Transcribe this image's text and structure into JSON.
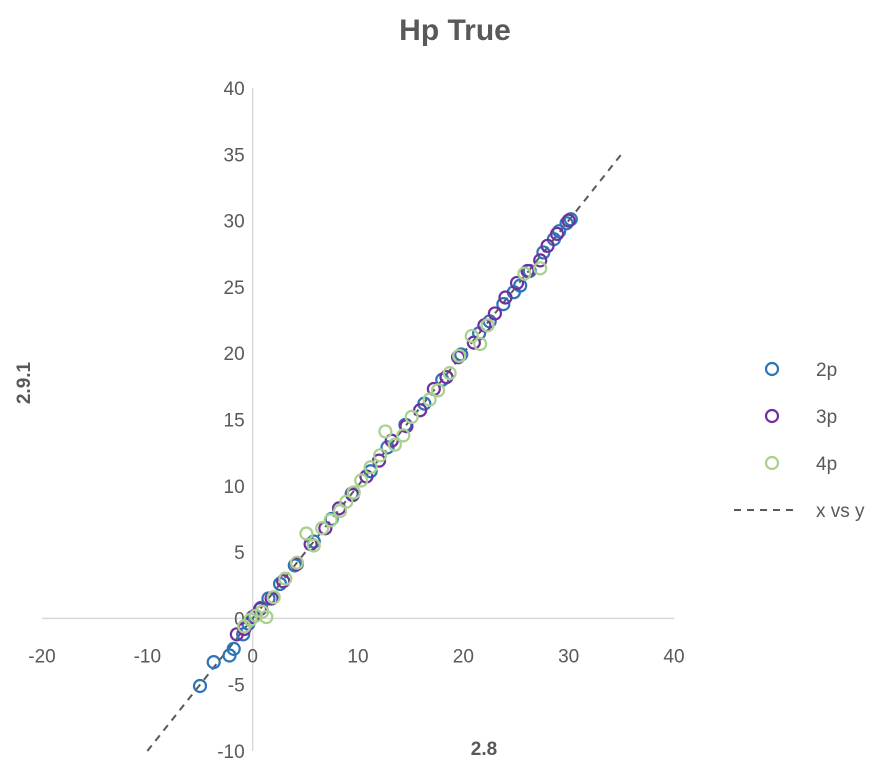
{
  "chart_data": {
    "type": "scatter",
    "title": "Hp True",
    "xlabel": "2.8",
    "ylabel": "2.9.1",
    "xlim": [
      -20,
      40
    ],
    "ylim": [
      -10,
      40
    ],
    "xticks": [
      -20,
      -10,
      0,
      10,
      20,
      30,
      40
    ],
    "yticks": [
      -10,
      -5,
      0,
      5,
      10,
      15,
      20,
      25,
      30,
      35,
      40
    ],
    "grid": false,
    "legend_position": "right",
    "series": [
      {
        "name": "2p",
        "color": "#2e75b6",
        "marker": "open-circle",
        "x": [
          -5,
          -3.7,
          -2.2,
          -1.8,
          -0.9,
          -0.4,
          0.2,
          0.8,
          1.5,
          2.6,
          4,
          5.8,
          7.5,
          9.4,
          11.2,
          12.8,
          14.5,
          16.3,
          18,
          19.8,
          21.5,
          22.5,
          23.8,
          24.8,
          25.4,
          26.3,
          27.6,
          28.6,
          29.1,
          29.8,
          30.2
        ],
        "y": [
          -5.1,
          -3.3,
          -2.8,
          -2.3,
          -1.2,
          -0.4,
          0.2,
          0.8,
          1.5,
          2.6,
          4,
          5.8,
          7.5,
          9.4,
          11.1,
          12.9,
          14.6,
          16.2,
          18,
          19.9,
          21.5,
          22.4,
          23.7,
          24.6,
          25.1,
          26.2,
          27.6,
          28.6,
          29.2,
          29.8,
          30.1
        ]
      },
      {
        "name": "3p",
        "color": "#7030a0",
        "marker": "open-circle",
        "x": [
          -1.5,
          -0.8,
          0,
          0.7,
          1.8,
          2.9,
          4.2,
          5.5,
          6.9,
          8.2,
          9.5,
          10.8,
          12,
          13.2,
          14.6,
          15.9,
          17.2,
          18.4,
          19.5,
          21,
          22,
          23,
          24,
          25.1,
          26.1,
          27.3,
          28,
          28.9,
          30
        ],
        "y": [
          -1.2,
          -0.8,
          0.1,
          0.7,
          1.5,
          2.8,
          4.1,
          5.6,
          6.8,
          8.3,
          9.3,
          10.7,
          11.9,
          13.4,
          14.5,
          15.7,
          17.3,
          18.2,
          19.7,
          20.8,
          22.1,
          23,
          24.2,
          25.3,
          26.2,
          27,
          28.1,
          29,
          30
        ]
      },
      {
        "name": "4p",
        "color": "#a9d18e",
        "marker": "open-circle",
        "x": [
          -0.8,
          -0.2,
          0.3,
          0.9,
          1.3,
          2,
          3.1,
          4.2,
          5.1,
          5.8,
          6.6,
          7.4,
          8.3,
          8.9,
          9.6,
          10.3,
          11.2,
          12.1,
          12.6,
          13.5,
          14.3,
          15.1,
          16.8,
          17.6,
          18.7,
          19.6,
          20.8,
          21.6,
          22.3,
          25.8,
          27.3
        ],
        "y": [
          -0.6,
          -0.1,
          0.2,
          0.5,
          0.1,
          1.6,
          3,
          4.2,
          6.4,
          5.5,
          6.8,
          7.4,
          8.1,
          8.8,
          9.5,
          10.4,
          11.4,
          12.3,
          14.1,
          13.1,
          13.8,
          15.2,
          16.5,
          17.2,
          18.5,
          19.8,
          21.3,
          20.7,
          22.1,
          26,
          26.4
        ]
      }
    ],
    "reference_line": {
      "name": "x vs y",
      "style": "dashed",
      "color": "#595959",
      "x": [
        -10,
        35
      ],
      "y": [
        -10,
        35
      ]
    }
  }
}
